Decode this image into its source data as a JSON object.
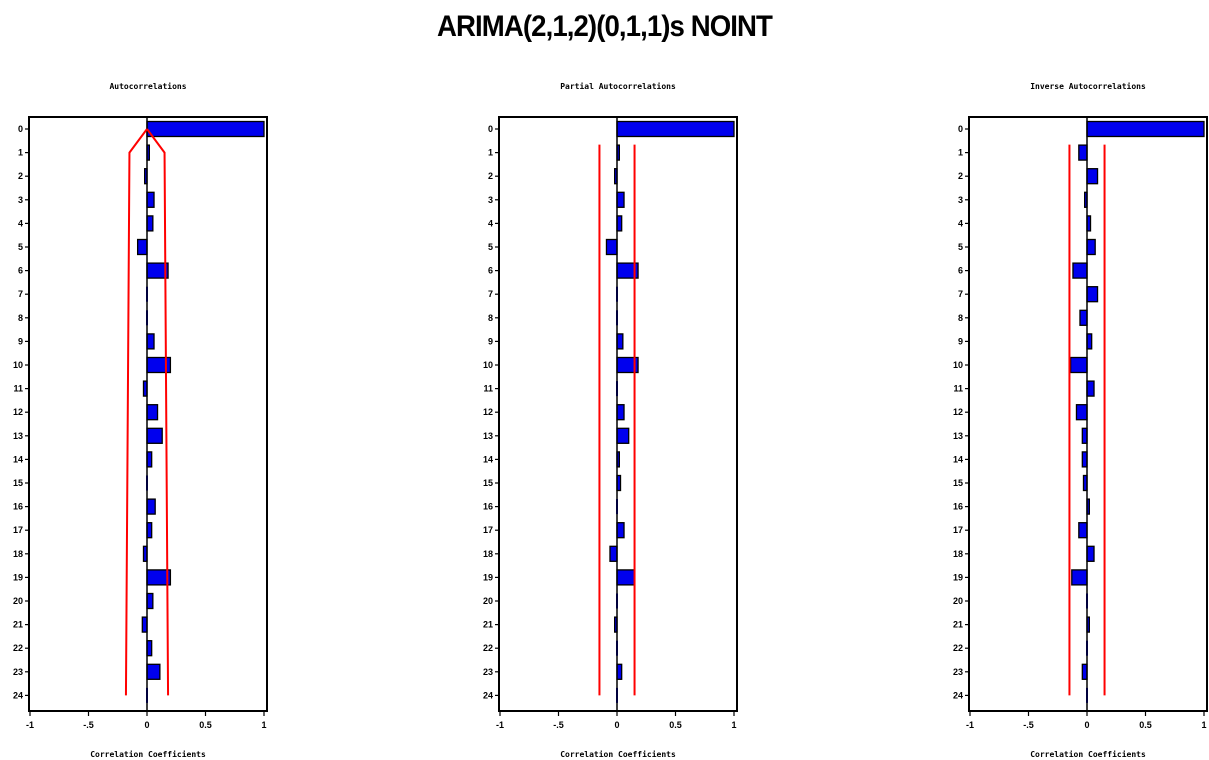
{
  "title": "ARIMA(2,1,2)(0,1,1)s NOINT",
  "colors": {
    "bar_fill": "#0000ee",
    "bar_stroke": "#000000",
    "confidence": "#ff0000",
    "zero_line": "#000000"
  },
  "chart_data": [
    {
      "type": "bar",
      "orientation": "horizontal",
      "title": "Autocorrelations",
      "xlabel": "Correlation Coefficients",
      "x_ticks": [
        "-1",
        "-.5",
        "0",
        "0.5",
        "1"
      ],
      "xlim": [
        -1,
        1
      ],
      "categories": [
        "0",
        "1",
        "2",
        "3",
        "4",
        "5",
        "6",
        "7",
        "8",
        "9",
        "10",
        "11",
        "12",
        "13",
        "14",
        "15",
        "16",
        "17",
        "18",
        "19",
        "20",
        "21",
        "22",
        "23",
        "24"
      ],
      "values": [
        1.0,
        0.02,
        -0.02,
        0.06,
        0.05,
        -0.08,
        0.18,
        0.0,
        0.0,
        0.06,
        0.2,
        -0.03,
        0.09,
        0.13,
        0.04,
        0.0,
        0.07,
        0.04,
        -0.03,
        0.2,
        0.05,
        -0.04,
        0.04,
        0.11,
        0.0
      ],
      "confidence_band": {
        "lags": [
          1,
          24
        ],
        "upper": [
          0.15,
          0.18
        ],
        "lower": [
          -0.15,
          -0.18
        ]
      }
    },
    {
      "type": "bar",
      "orientation": "horizontal",
      "title": "Partial Autocorrelations",
      "xlabel": "Correlation Coefficients",
      "x_ticks": [
        "-1",
        "-.5",
        "0",
        "0.5",
        "1"
      ],
      "xlim": [
        -1,
        1
      ],
      "categories": [
        "0",
        "1",
        "2",
        "3",
        "4",
        "5",
        "6",
        "7",
        "8",
        "9",
        "10",
        "11",
        "12",
        "13",
        "14",
        "15",
        "16",
        "17",
        "18",
        "19",
        "20",
        "21",
        "22",
        "23",
        "24"
      ],
      "values": [
        1.0,
        0.02,
        -0.02,
        0.06,
        0.04,
        -0.09,
        0.18,
        0.0,
        0.0,
        0.05,
        0.18,
        0.0,
        0.06,
        0.1,
        0.02,
        0.03,
        0.0,
        0.06,
        -0.06,
        0.15,
        0.0,
        -0.02,
        0.0,
        0.04,
        0.0
      ],
      "confidence_band": {
        "lags": [
          1,
          24
        ],
        "upper": [
          0.15,
          0.15
        ],
        "lower": [
          -0.15,
          -0.15
        ]
      }
    },
    {
      "type": "bar",
      "orientation": "horizontal",
      "title": "Inverse Autocorrelations",
      "xlabel": "Correlation Coefficients",
      "x_ticks": [
        "-1",
        "-.5",
        "0",
        "0.5",
        "1"
      ],
      "xlim": [
        -1,
        1
      ],
      "categories": [
        "0",
        "1",
        "2",
        "3",
        "4",
        "5",
        "6",
        "7",
        "8",
        "9",
        "10",
        "11",
        "12",
        "13",
        "14",
        "15",
        "16",
        "17",
        "18",
        "19",
        "20",
        "21",
        "22",
        "23",
        "24"
      ],
      "values": [
        1.0,
        -0.07,
        0.09,
        -0.02,
        0.03,
        0.07,
        -0.12,
        0.09,
        -0.06,
        0.04,
        -0.14,
        0.06,
        -0.09,
        -0.04,
        -0.04,
        -0.03,
        0.02,
        -0.07,
        0.06,
        -0.13,
        0.0,
        0.02,
        0.0,
        -0.04,
        0.0
      ],
      "confidence_band": {
        "lags": [
          1,
          24
        ],
        "upper": [
          0.15,
          0.15
        ],
        "lower": [
          -0.15,
          -0.15
        ]
      }
    }
  ]
}
